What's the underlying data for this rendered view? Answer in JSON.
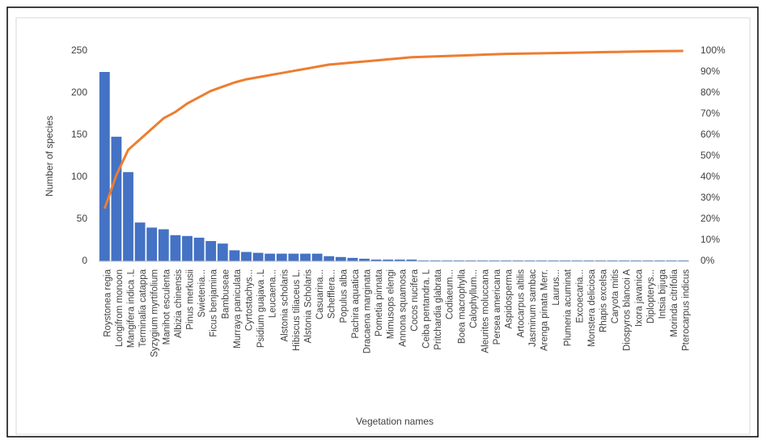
{
  "chart_data": {
    "type": "pareto",
    "x_label": "Vegetation names",
    "y_label": "Number of species",
    "categories": [
      "Roystonea regia",
      "Longifrom monoon",
      "Mangifera indica .L",
      "Terminalia catappa",
      "Syzygium myrtifolium",
      "Manihot esculenta",
      "Albizia chinensis",
      "Pinus merkusii",
      "Swietenia...",
      "Ficus benjamina",
      "Bambuseae",
      "Murraya paniculata",
      "Cyrtostachys...",
      "Psidium guajava .L",
      "Leucaena...",
      "Alstonia scholaris",
      "Hibiscus tiliaceus L.",
      "Alstonia Scholaris",
      "Casuarina...",
      "Schefflera...",
      "Populus alba",
      "Pachira aquatica",
      "Dracaena marginata",
      "Pometia pinnata",
      "Mimusops elengi",
      "Annona squamosa",
      "Cocos nucifera",
      "Ceiba pentandra. L",
      "Pritchardia glabrata",
      "Codiaeum...",
      "Boea macrophylla",
      "Calophyllum...",
      "Aleurites moluccana",
      "Persea americana",
      "Aspidosperma",
      "Artocarpus altilis",
      "Jasminum sambac",
      "Arenga pinata Merr.",
      "Laurus...",
      "Plumeria acuminat",
      "Excoecaria...",
      "Monstera deliciosa",
      "Rhapis excelsa",
      "Caryota mitis",
      "Diospyros blancoi A",
      "Ixora javanica",
      "Diplopterys...",
      "Intsia bijuga",
      "Morinda citrifolia",
      "Pterocarpus indicus"
    ],
    "series": [
      {
        "type": "bar",
        "color": "#4472c4",
        "values": [
          225,
          148,
          106,
          46,
          40,
          38,
          31,
          30,
          28,
          24,
          21,
          13,
          11,
          10,
          9,
          9,
          9,
          9,
          9,
          6,
          5,
          4,
          3,
          2,
          2,
          2,
          2,
          1,
          1,
          1,
          1,
          1,
          1,
          1,
          1,
          1,
          1,
          1,
          1,
          1,
          1,
          1,
          1,
          1,
          1,
          1,
          1,
          1,
          1,
          1
        ]
      },
      {
        "type": "line",
        "axis": "y2",
        "color": "#ed7d31",
        "values": [
          25,
          41,
          53,
          58,
          63,
          68,
          71,
          75,
          78,
          81,
          83,
          85,
          86.5,
          87.5,
          88.5,
          89.5,
          90.5,
          91.5,
          92.5,
          93.5,
          94,
          94.5,
          95,
          95.5,
          96,
          96.5,
          97,
          97.2,
          97.4,
          97.6,
          97.8,
          98,
          98.2,
          98.4,
          98.6,
          98.7,
          98.8,
          98.9,
          99,
          99.1,
          99.2,
          99.3,
          99.4,
          99.5,
          99.6,
          99.7,
          99.8,
          99.9,
          99.95,
          100
        ]
      }
    ],
    "ylim": [
      0,
      250
    ],
    "yticks": [
      0,
      50,
      100,
      150,
      200,
      250
    ],
    "y2lim": [
      0,
      100
    ],
    "y2ticks": [
      {
        "value": 0,
        "label": "0%"
      },
      {
        "value": 10,
        "label": "10%"
      },
      {
        "value": 20,
        "label": "20%"
      },
      {
        "value": 30,
        "label": "30%"
      },
      {
        "value": 40,
        "label": "40%"
      },
      {
        "value": 50,
        "label": "50%"
      },
      {
        "value": 60,
        "label": "60%"
      },
      {
        "value": 70,
        "label": "70%"
      },
      {
        "value": 80,
        "label": "80%"
      },
      {
        "value": 90,
        "label": "90%"
      },
      {
        "value": 100,
        "label": "100%"
      }
    ],
    "grid": false
  }
}
